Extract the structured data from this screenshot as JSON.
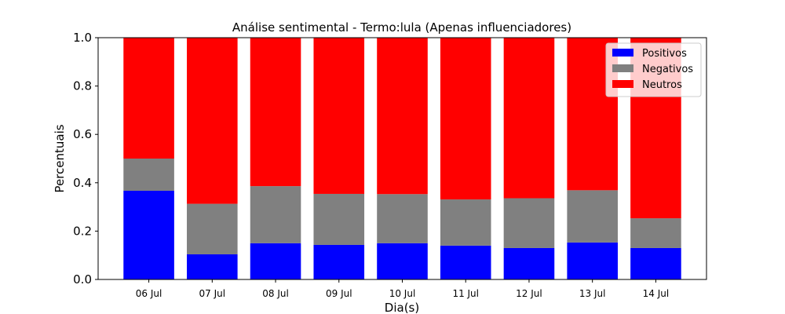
{
  "chart_data": {
    "type": "bar",
    "stacked": true,
    "title": "Análise sentimental - Termo:lula (Apenas influenciadores)",
    "xlabel": "Dia(s)",
    "ylabel": "Percentuais",
    "ylim": [
      0,
      1.0
    ],
    "yticks": [
      "0.0",
      "0.2",
      "0.4",
      "0.6",
      "0.8",
      "1.0"
    ],
    "categories": [
      "06 Jul",
      "07 Jul",
      "08 Jul",
      "09 Jul",
      "10 Jul",
      "11 Jul",
      "12 Jul",
      "13 Jul",
      "14 Jul"
    ],
    "series": [
      {
        "name": "Positivos",
        "color": "#0000ff",
        "values": [
          0.367,
          0.104,
          0.15,
          0.143,
          0.15,
          0.14,
          0.13,
          0.153,
          0.13
        ]
      },
      {
        "name": "Negativos",
        "color": "#808080",
        "values": [
          0.133,
          0.209,
          0.236,
          0.211,
          0.203,
          0.191,
          0.206,
          0.216,
          0.123
        ]
      },
      {
        "name": "Neutros",
        "color": "#ff0000",
        "values": [
          0.5,
          0.687,
          0.614,
          0.646,
          0.647,
          0.669,
          0.664,
          0.631,
          0.747
        ]
      }
    ],
    "legend": "top-right",
    "grid": false
  }
}
